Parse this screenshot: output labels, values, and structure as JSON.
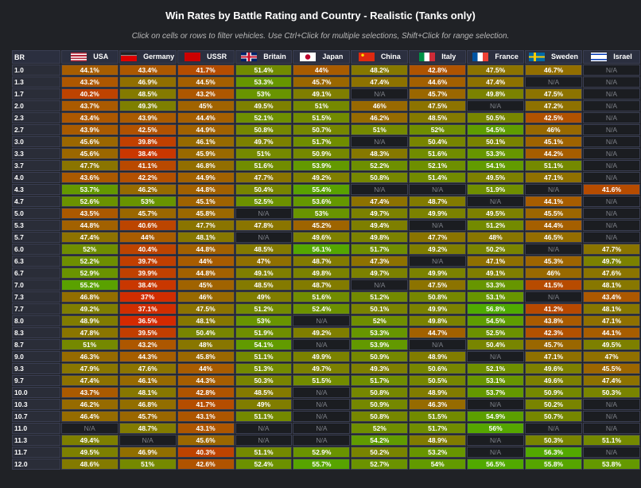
{
  "chart_data": {
    "type": "heatmap",
    "title": "Win Rates by Battle Rating and Country - Realistic (Tanks only)",
    "subtitle": "Click on cells or rows to filter vehicles. Use Ctrl+Click for multiple selections, Shift+Click for range selection.",
    "row_header": "BR",
    "columns": [
      {
        "name": "USA",
        "flag": "usa"
      },
      {
        "name": "Germany",
        "flag": "germany"
      },
      {
        "name": "USSR",
        "flag": "ussr"
      },
      {
        "name": "Britain",
        "flag": "britain"
      },
      {
        "name": "Japan",
        "flag": "japan"
      },
      {
        "name": "China",
        "flag": "china"
      },
      {
        "name": "Italy",
        "flag": "italy"
      },
      {
        "name": "France",
        "flag": "france"
      },
      {
        "name": "Sweden",
        "flag": "sweden"
      },
      {
        "name": "Israel",
        "flag": "israel"
      }
    ],
    "na_label": "N/A",
    "rows": [
      {
        "br": "1.0",
        "values": [
          44.1,
          43.4,
          41.7,
          51.4,
          44,
          48.2,
          42.8,
          47.5,
          46.7,
          null
        ]
      },
      {
        "br": "1.3",
        "values": [
          43.2,
          46.9,
          44.5,
          53.3,
          45.7,
          47.4,
          44.6,
          47.4,
          null,
          null
        ]
      },
      {
        "br": "1.7",
        "values": [
          40.2,
          48.5,
          43.2,
          53,
          49.1,
          null,
          45.7,
          49.8,
          47.5,
          null
        ]
      },
      {
        "br": "2.0",
        "values": [
          43.7,
          49.3,
          45,
          49.5,
          51,
          46,
          47.5,
          null,
          47.2,
          null
        ]
      },
      {
        "br": "2.3",
        "values": [
          43.4,
          43.9,
          44.4,
          52.1,
          51.5,
          46.2,
          48.5,
          50.5,
          42.5,
          null
        ]
      },
      {
        "br": "2.7",
        "values": [
          43.9,
          42.5,
          44.9,
          50.8,
          50.7,
          51,
          52,
          54.5,
          46,
          null
        ]
      },
      {
        "br": "3.0",
        "values": [
          45.6,
          39.8,
          46.1,
          49.7,
          51.7,
          null,
          50.4,
          50.1,
          45.1,
          null
        ]
      },
      {
        "br": "3.3",
        "values": [
          45.6,
          38.4,
          45.9,
          51,
          50.9,
          48.3,
          51.6,
          53.3,
          44.2,
          null
        ]
      },
      {
        "br": "3.7",
        "values": [
          47.7,
          41.1,
          46.8,
          51.6,
          53.9,
          52.2,
          52.1,
          54.1,
          51.1,
          null
        ]
      },
      {
        "br": "4.0",
        "values": [
          43.6,
          42.2,
          44.9,
          47.7,
          49.2,
          50.8,
          51.4,
          49.5,
          47.1,
          null
        ]
      },
      {
        "br": "4.3",
        "values": [
          53.7,
          46.2,
          44.8,
          50.4,
          55.4,
          null,
          null,
          51.9,
          null,
          41.6
        ]
      },
      {
        "br": "4.7",
        "values": [
          52.6,
          53,
          45.1,
          52.5,
          53.6,
          47.4,
          48.7,
          null,
          44.1,
          null
        ]
      },
      {
        "br": "5.0",
        "values": [
          43.5,
          45.7,
          45.8,
          null,
          53,
          49.7,
          49.9,
          49.5,
          45.5,
          null
        ]
      },
      {
        "br": "5.3",
        "values": [
          44.8,
          40.6,
          47.7,
          47.8,
          45.2,
          49.4,
          null,
          51.2,
          44.4,
          null
        ]
      },
      {
        "br": "5.7",
        "values": [
          47.4,
          44,
          48.1,
          null,
          49.6,
          49.8,
          47.7,
          48,
          46.5,
          null
        ]
      },
      {
        "br": "6.0",
        "values": [
          52,
          40.4,
          44.8,
          48.5,
          56.1,
          51.7,
          49.2,
          50.2,
          null,
          47.7
        ]
      },
      {
        "br": "6.3",
        "values": [
          52.2,
          39.7,
          44,
          47,
          48.7,
          47.3,
          null,
          47.1,
          45.3,
          49.7
        ]
      },
      {
        "br": "6.7",
        "values": [
          52.9,
          39.9,
          44.8,
          49.1,
          49.8,
          49.7,
          49.9,
          49.1,
          46,
          47.6
        ]
      },
      {
        "br": "7.0",
        "values": [
          55.2,
          38.4,
          45,
          48.5,
          48.7,
          null,
          47.5,
          53.3,
          41.5,
          48.1
        ]
      },
      {
        "br": "7.3",
        "values": [
          46.8,
          37,
          46,
          49,
          51.6,
          51.2,
          50.8,
          53.1,
          null,
          43.4
        ]
      },
      {
        "br": "7.7",
        "values": [
          49.2,
          37.1,
          47.5,
          51.2,
          52.4,
          50.1,
          49.9,
          56.8,
          41.2,
          48.1
        ]
      },
      {
        "br": "8.0",
        "values": [
          48.9,
          36.5,
          48.1,
          53,
          null,
          52,
          49.8,
          54.5,
          43.8,
          47.1
        ]
      },
      {
        "br": "8.3",
        "values": [
          47.8,
          39.5,
          50.4,
          51.9,
          49.2,
          53.3,
          44.7,
          52.5,
          42.3,
          44.1
        ]
      },
      {
        "br": "8.7",
        "values": [
          51,
          43.2,
          48,
          54.1,
          null,
          53.9,
          null,
          50.4,
          45.7,
          49.5
        ]
      },
      {
        "br": "9.0",
        "values": [
          46.3,
          44.3,
          45.8,
          51.1,
          49.9,
          50.9,
          48.9,
          null,
          47.1,
          47
        ]
      },
      {
        "br": "9.3",
        "values": [
          47.9,
          47.6,
          44,
          51.3,
          49.7,
          49.3,
          50.6,
          52.1,
          49.6,
          45.5
        ]
      },
      {
        "br": "9.7",
        "values": [
          47.4,
          46.1,
          44.3,
          50.3,
          51.5,
          51.7,
          50.5,
          53.1,
          49.6,
          47.4
        ]
      },
      {
        "br": "10.0",
        "values": [
          43.7,
          48.1,
          42.8,
          48.5,
          null,
          50.8,
          48.9,
          53.7,
          50.9,
          50.3
        ]
      },
      {
        "br": "10.3",
        "values": [
          46.2,
          46.8,
          41.7,
          49,
          null,
          50.9,
          46.3,
          null,
          50.2,
          null
        ]
      },
      {
        "br": "10.7",
        "values": [
          46.4,
          45.7,
          43.1,
          51.1,
          null,
          50.8,
          51.5,
          54.9,
          50.7,
          null
        ]
      },
      {
        "br": "11.0",
        "values": [
          null,
          48.7,
          43.1,
          null,
          null,
          52,
          51.7,
          56,
          null,
          null
        ]
      },
      {
        "br": "11.3",
        "values": [
          49.4,
          null,
          45.6,
          null,
          null,
          54.2,
          48.9,
          null,
          50.3,
          51.1
        ]
      },
      {
        "br": "11.7",
        "values": [
          49.5,
          46.9,
          40.3,
          51.1,
          52.9,
          50.2,
          53.2,
          null,
          56.3,
          null
        ]
      },
      {
        "br": "12.0",
        "values": [
          48.6,
          51,
          42.6,
          52.4,
          55.7,
          52.7,
          54,
          56.5,
          55.8,
          53.8
        ]
      }
    ],
    "color_scale": {
      "low": "#d22d00",
      "mid": "#7d8000",
      "high": "#50aa00",
      "na": "#1b1d21"
    }
  }
}
